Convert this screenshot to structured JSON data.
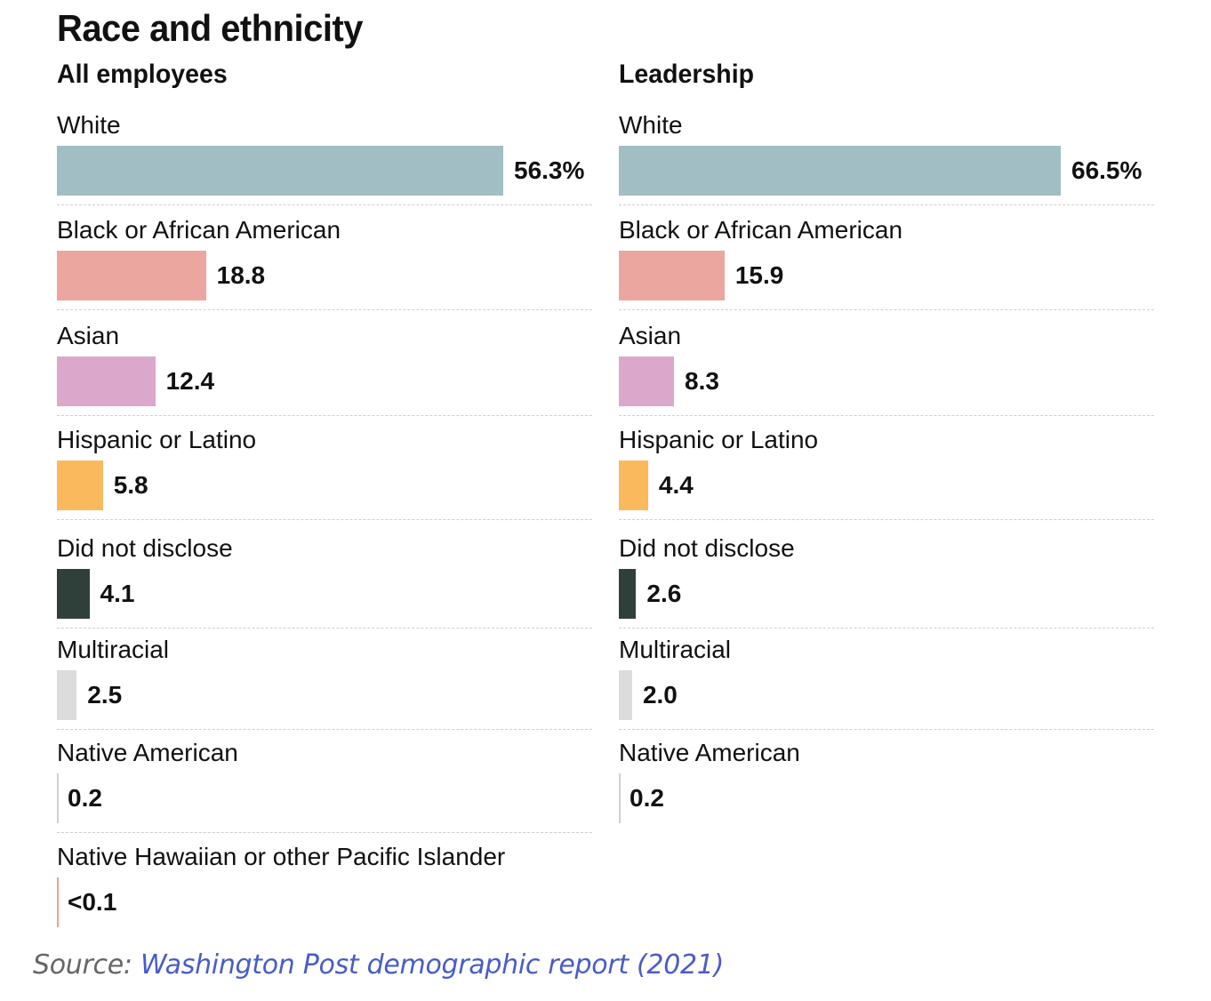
{
  "title": "Race and ethnicity",
  "source": {
    "prefix": "Source: ",
    "link_text": "Washington Post demographic report (2021)"
  },
  "chart_data": [
    {
      "type": "bar",
      "orientation": "horizontal",
      "title": "All employees",
      "categories": [
        "White",
        "Black or African American",
        "Asian",
        "Hispanic or Latino",
        "Did not disclose",
        "Multiracial",
        "Native American",
        "Native Hawaiian or other Pacific Islander"
      ],
      "values": [
        56.3,
        18.8,
        12.4,
        5.8,
        4.1,
        2.5,
        0.2,
        0.05
      ],
      "value_labels": [
        "56.3%",
        "18.8",
        "12.4",
        "5.8",
        "4.1",
        "2.5",
        "0.2",
        "<0.1"
      ],
      "colors": [
        "#a0bec3",
        "#eba79f",
        "#dba8cb",
        "#fbb95e",
        "#2f3f3a",
        "#dcdcdc",
        "#d0d0d0",
        "#f0a090"
      ],
      "unit": "%",
      "xlabel": "",
      "ylabel": ""
    },
    {
      "type": "bar",
      "orientation": "horizontal",
      "title": "Leadership",
      "categories": [
        "White",
        "Black or African American",
        "Asian",
        "Hispanic or Latino",
        "Did not disclose",
        "Multiracial",
        "Native American"
      ],
      "values": [
        66.5,
        15.9,
        8.3,
        4.4,
        2.6,
        2.0,
        0.2
      ],
      "value_labels": [
        "66.5%",
        "15.9",
        "8.3",
        "4.4",
        "2.6",
        "2.0",
        "0.2"
      ],
      "colors": [
        "#a0bec3",
        "#eba79f",
        "#dba8cb",
        "#fbb95e",
        "#2f3f3a",
        "#dcdcdc",
        "#d0d0d0"
      ],
      "unit": "%",
      "xlabel": "",
      "ylabel": ""
    }
  ]
}
